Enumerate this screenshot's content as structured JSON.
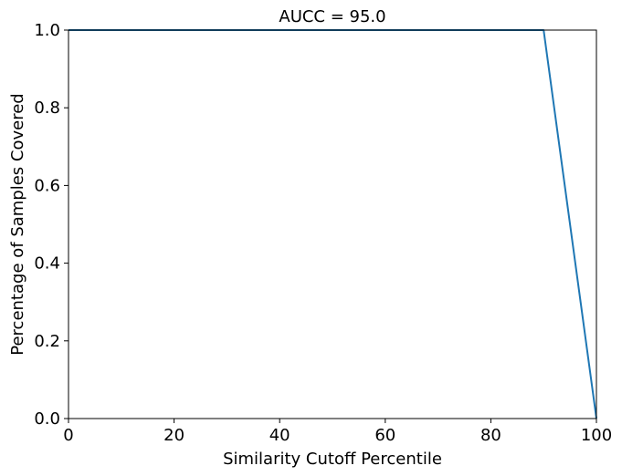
{
  "chart_data": {
    "type": "line",
    "title": "AUCC = 95.0",
    "xlabel": "Similarity Cutoff Percentile",
    "ylabel": "Percentage of Samples Covered",
    "xlim": [
      0,
      100
    ],
    "ylim": [
      0,
      1.0
    ],
    "xticks": [
      0,
      20,
      40,
      60,
      80,
      100
    ],
    "yticks": [
      0.0,
      0.2,
      0.4,
      0.6,
      0.8,
      1.0
    ],
    "xtick_labels": [
      "0",
      "20",
      "40",
      "60",
      "80",
      "100"
    ],
    "ytick_labels": [
      "0.0",
      "0.2",
      "0.4",
      "0.6",
      "0.8",
      "1.0"
    ],
    "grid": false,
    "series": [
      {
        "color": "#1f77b4",
        "x": [
          0,
          90,
          100
        ],
        "y": [
          1.0,
          1.0,
          0.0
        ]
      }
    ]
  }
}
